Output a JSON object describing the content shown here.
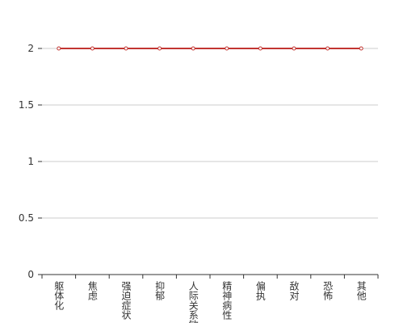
{
  "chart_data": {
    "type": "line",
    "categories": [
      "躯体化",
      "焦虑",
      "强迫症状",
      "抑郁",
      "人际关系敏感",
      "精神病性",
      "偏执",
      "敌对",
      "恐怖",
      "其他"
    ],
    "series": [
      {
        "name": null,
        "color": "#c23531",
        "values": [
          2,
          2,
          2,
          2,
          2,
          2,
          2,
          2,
          2,
          2
        ]
      }
    ],
    "ylim": [
      0,
      2
    ],
    "yticks": [
      0,
      0.5,
      1,
      1.5,
      2
    ],
    "grid": true
  }
}
